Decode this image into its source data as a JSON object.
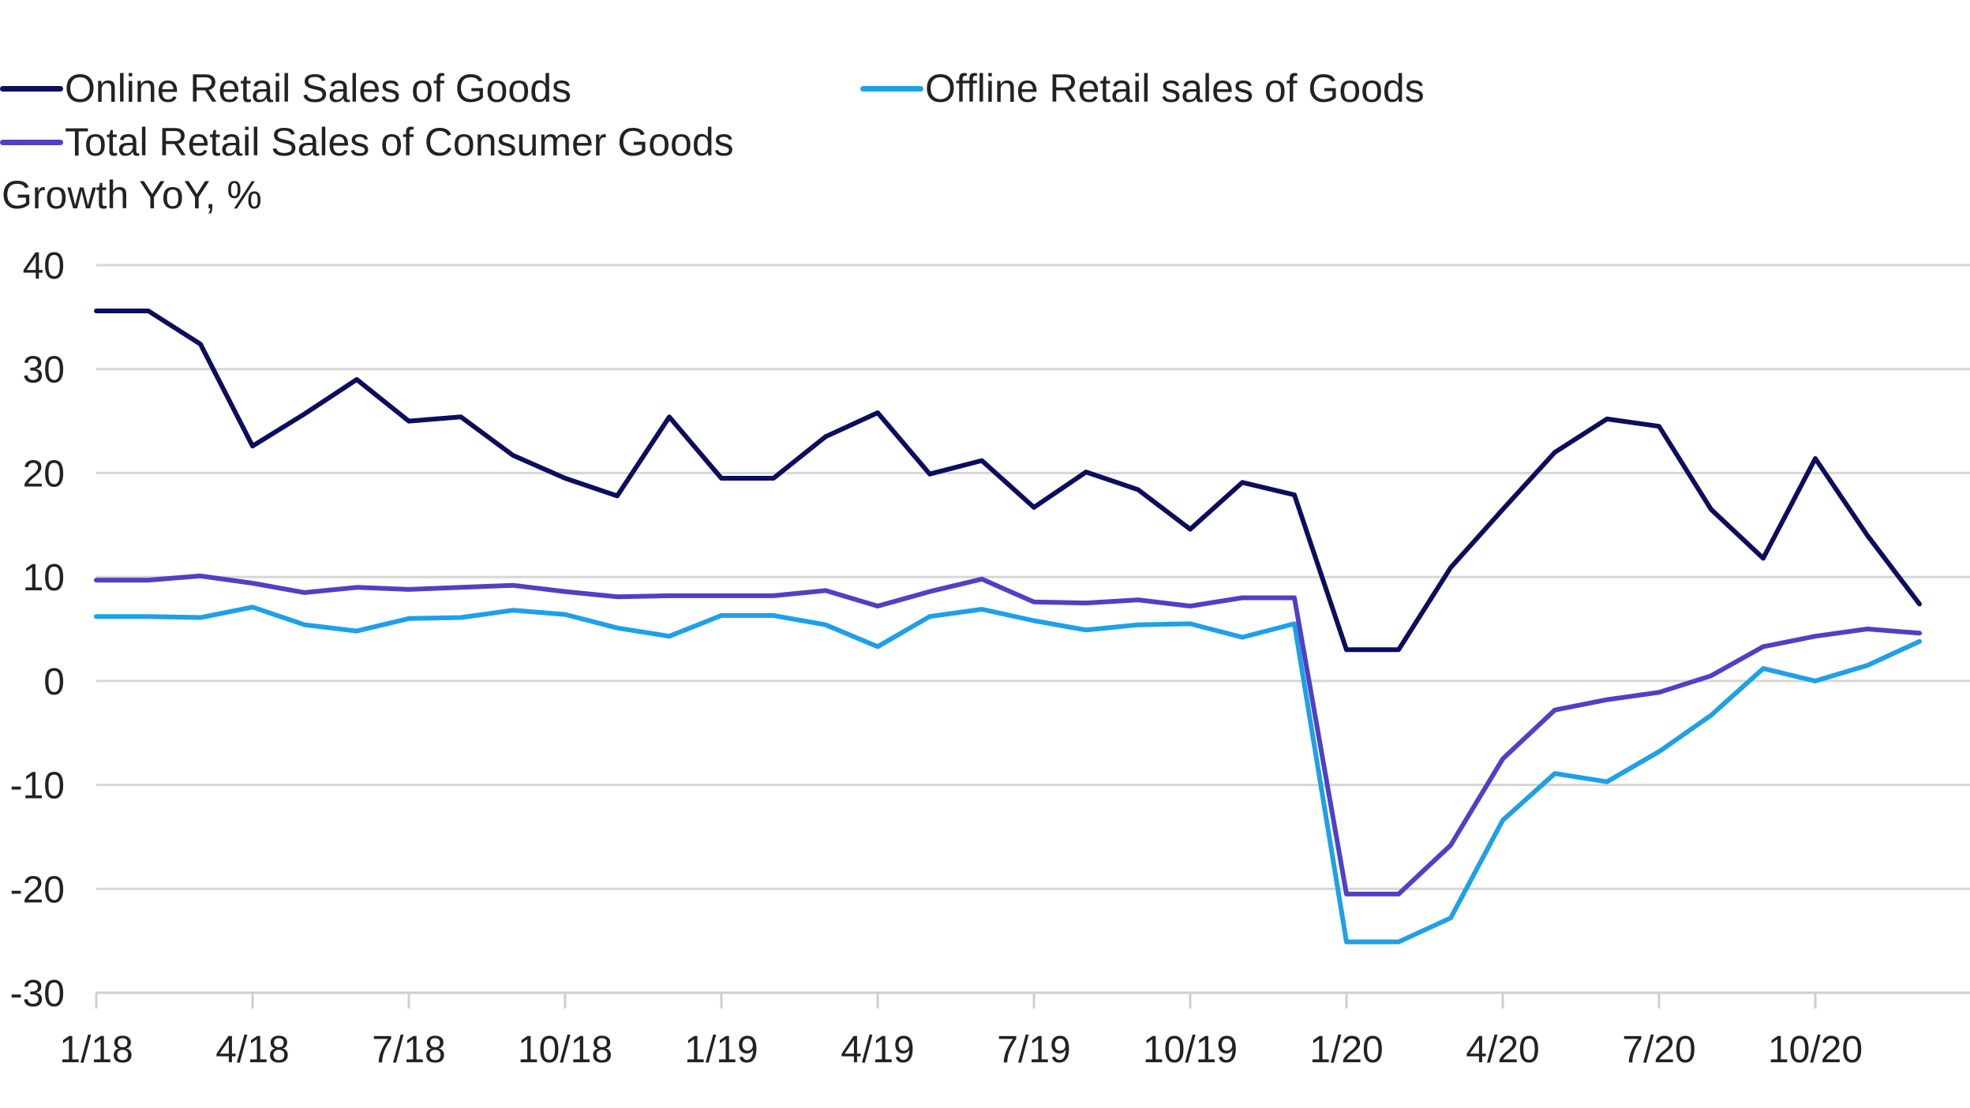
{
  "chart_data": {
    "type": "line",
    "title": "",
    "xlabel": "",
    "ylabel": "Growth YoY, %",
    "ylim": [
      -30,
      40
    ],
    "yticks": [
      40,
      30,
      20,
      10,
      0,
      -10,
      -20,
      -30
    ],
    "x": [
      "1/18",
      "2/18",
      "3/18",
      "4/18",
      "5/18",
      "6/18",
      "7/18",
      "8/18",
      "9/18",
      "10/18",
      "11/18",
      "12/18",
      "1/19",
      "2/19",
      "3/19",
      "4/19",
      "5/19",
      "6/19",
      "7/19",
      "8/19",
      "9/19",
      "10/19",
      "11/19",
      "12/19",
      "1/20",
      "2/20",
      "3/20",
      "4/20",
      "5/20",
      "6/20",
      "7/20",
      "8/20",
      "9/20",
      "10/20",
      "11/20",
      "12/20"
    ],
    "xtick_labels": [
      "1/18",
      "4/18",
      "7/18",
      "10/18",
      "1/19",
      "4/19",
      "7/19",
      "10/19",
      "1/20",
      "4/20",
      "7/20",
      "10/20"
    ],
    "grid": true,
    "legend_position": "top-left",
    "series": [
      {
        "name": "Online Retail Sales of Goods",
        "color": "#0d0d5e",
        "values": [
          35.6,
          35.6,
          32.4,
          22.6,
          25.7,
          29.0,
          25.0,
          25.4,
          21.7,
          19.5,
          17.8,
          25.4,
          19.5,
          19.5,
          23.5,
          25.8,
          19.9,
          21.2,
          16.7,
          20.1,
          18.4,
          14.6,
          19.1,
          17.9,
          3.0,
          3.0,
          10.9,
          16.5,
          22.0,
          25.2,
          24.5,
          16.5,
          11.8,
          21.4,
          14.0,
          7.4
        ]
      },
      {
        "name": "Offline Retail sales of Goods",
        "color": "#1ea0e8",
        "values": [
          6.2,
          6.2,
          6.1,
          7.1,
          5.4,
          4.8,
          6.0,
          6.1,
          6.8,
          6.4,
          5.1,
          4.3,
          6.3,
          6.3,
          5.4,
          3.3,
          6.2,
          6.9,
          5.8,
          4.9,
          5.4,
          5.5,
          4.2,
          5.5,
          -25.1,
          -25.1,
          -22.8,
          -13.4,
          -8.9,
          -9.7,
          -6.8,
          -3.3,
          1.2,
          0.0,
          1.5,
          3.8
        ]
      },
      {
        "name": "Total Retail Sales of Consumer Goods",
        "color": "#5040c6",
        "values": [
          9.7,
          9.7,
          10.1,
          9.4,
          8.5,
          9.0,
          8.8,
          9.0,
          9.2,
          8.6,
          8.1,
          8.2,
          8.2,
          8.2,
          8.7,
          7.2,
          8.6,
          9.8,
          7.6,
          7.5,
          7.8,
          7.2,
          8.0,
          8.0,
          -20.5,
          -20.5,
          -15.8,
          -7.5,
          -2.8,
          -1.8,
          -1.1,
          0.5,
          3.3,
          4.3,
          5.0,
          4.6
        ]
      }
    ]
  }
}
